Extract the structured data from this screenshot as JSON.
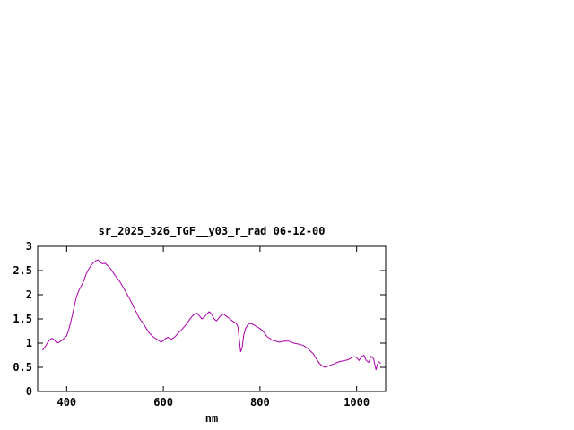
{
  "window": {
    "background": "#ffffff"
  },
  "chart_data": {
    "type": "line",
    "title": "sr_2025_326_TGF__y03_r_rad 06-12-00",
    "xlabel": "nm",
    "ylabel": "",
    "xlim": [
      340,
      1060
    ],
    "ylim": [
      0,
      3
    ],
    "x_ticks": [
      400,
      600,
      800,
      1000
    ],
    "x_tick_labels": [
      "400",
      "600",
      "800",
      "1000"
    ],
    "y_ticks": [
      0,
      0.5,
      1,
      1.5,
      2,
      2.5,
      3
    ],
    "y_tick_labels": [
      "0",
      "0.5",
      "1",
      "1.5",
      "2",
      "2.5",
      "3"
    ],
    "grid": false,
    "legend": "none",
    "line_color": "#aa00aa",
    "border_color": "#000000",
    "background_color": "#ffffff",
    "series": [
      {
        "name": "sr_2025_326_TGF__y03_r_rad",
        "x": [
          350,
          355,
          360,
          365,
          370,
          375,
          380,
          385,
          390,
          395,
          400,
          405,
          410,
          415,
          420,
          425,
          430,
          435,
          440,
          445,
          450,
          455,
          460,
          465,
          470,
          475,
          480,
          485,
          490,
          495,
          500,
          510,
          520,
          530,
          540,
          550,
          560,
          570,
          580,
          590,
          595,
          600,
          605,
          610,
          615,
          620,
          625,
          630,
          640,
          650,
          655,
          660,
          665,
          670,
          675,
          680,
          685,
          690,
          695,
          700,
          705,
          710,
          715,
          720,
          725,
          730,
          735,
          740,
          745,
          750,
          754,
          757,
          760,
          763,
          766,
          770,
          775,
          780,
          785,
          790,
          800,
          805,
          810,
          815,
          820,
          825,
          830,
          840,
          850,
          860,
          870,
          880,
          890,
          900,
          910,
          915,
          920,
          925,
          930,
          935,
          940,
          945,
          950,
          955,
          960,
          965,
          970,
          975,
          980,
          985,
          990,
          995,
          1000,
          1005,
          1010,
          1015,
          1020,
          1025,
          1030,
          1035,
          1040,
          1045,
          1050
        ],
        "y": [
          0.85,
          0.92,
          1.0,
          1.07,
          1.1,
          1.06,
          1.0,
          1.02,
          1.06,
          1.1,
          1.15,
          1.3,
          1.5,
          1.72,
          1.95,
          2.08,
          2.18,
          2.28,
          2.42,
          2.52,
          2.6,
          2.66,
          2.7,
          2.72,
          2.66,
          2.64,
          2.65,
          2.6,
          2.55,
          2.48,
          2.4,
          2.27,
          2.1,
          1.92,
          1.72,
          1.52,
          1.38,
          1.22,
          1.12,
          1.06,
          1.02,
          1.05,
          1.1,
          1.12,
          1.08,
          1.1,
          1.14,
          1.2,
          1.3,
          1.42,
          1.5,
          1.56,
          1.6,
          1.62,
          1.56,
          1.5,
          1.54,
          1.6,
          1.65,
          1.6,
          1.5,
          1.46,
          1.52,
          1.58,
          1.6,
          1.56,
          1.52,
          1.48,
          1.44,
          1.42,
          1.35,
          1.1,
          0.82,
          0.9,
          1.15,
          1.3,
          1.38,
          1.41,
          1.39,
          1.36,
          1.3,
          1.26,
          1.2,
          1.13,
          1.1,
          1.06,
          1.05,
          1.02,
          1.04,
          1.04,
          1.0,
          0.98,
          0.95,
          0.88,
          0.78,
          0.7,
          0.62,
          0.56,
          0.52,
          0.5,
          0.52,
          0.54,
          0.56,
          0.58,
          0.6,
          0.62,
          0.63,
          0.64,
          0.65,
          0.67,
          0.7,
          0.72,
          0.7,
          0.64,
          0.72,
          0.75,
          0.64,
          0.6,
          0.73,
          0.68,
          0.45,
          0.62,
          0.58
        ]
      }
    ]
  }
}
